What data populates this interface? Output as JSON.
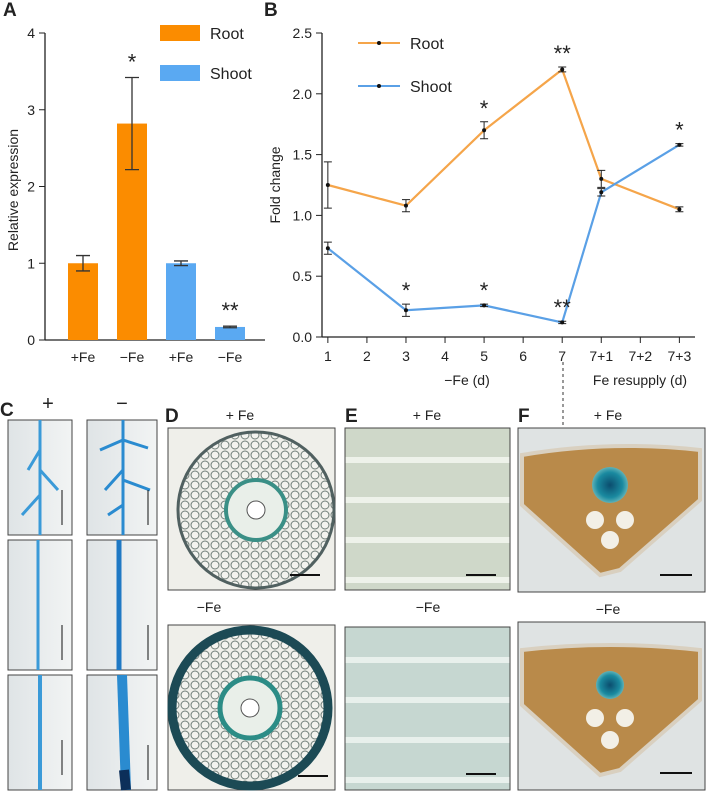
{
  "chart_data": [
    {
      "type": "bar",
      "letter": "A",
      "ylabel": "Relative expression",
      "categories": [
        "+Fe",
        "−Fe",
        "+Fe",
        "−Fe"
      ],
      "series": [
        {
          "name": "Root",
          "color": "#fb8c00",
          "values": [
            1.0,
            2.82,
            null,
            null
          ],
          "errors": [
            0.1,
            0.6,
            null,
            null
          ],
          "significance": [
            null,
            "*",
            null,
            null
          ]
        },
        {
          "name": "Shoot",
          "color": "#5aa9f2",
          "values": [
            null,
            null,
            1.0,
            0.17
          ],
          "errors": [
            null,
            null,
            0.03,
            0.01
          ],
          "significance": [
            null,
            null,
            null,
            "**"
          ]
        }
      ],
      "ylim": [
        0,
        4
      ],
      "yticks": [
        0,
        1,
        2,
        3,
        4
      ]
    },
    {
      "type": "line",
      "letter": "B",
      "ylabel": "Fold change",
      "xlabels": [
        "−Fe (d)",
        "Fe resupply (d)"
      ],
      "x": [
        1,
        3,
        5,
        7,
        8,
        10
      ],
      "xlim": [
        0.85,
        10.4
      ],
      "xticks": [
        1,
        2,
        3,
        4,
        5,
        6,
        7,
        {
          "value": 8,
          "label": "7+1"
        },
        {
          "value": 9,
          "label": "7+2"
        },
        {
          "value": 10,
          "label": "7+3"
        }
      ],
      "ylim": [
        0,
        2.5
      ],
      "yticks": [
        {
          "value": 0,
          "label": "0.0"
        },
        0.5,
        {
          "value": 1,
          "label": "1.0"
        },
        1.5,
        {
          "value": 2,
          "label": "2.0"
        },
        2.5
      ],
      "series": [
        {
          "name": "Root",
          "color": "#f5a54a",
          "values": [
            1.25,
            1.08,
            1.7,
            2.2,
            1.3,
            1.05
          ],
          "errors": [
            0.19,
            0.05,
            0.07,
            0.02,
            0.07,
            0.02
          ],
          "significance": [
            null,
            null,
            "*",
            "**",
            null,
            null
          ]
        },
        {
          "name": "Shoot",
          "color": "#5aa0e6",
          "values": [
            0.73,
            0.22,
            0.26,
            0.12,
            1.19,
            1.58
          ],
          "errors": [
            0.05,
            0.05,
            0.01,
            0.01,
            0.03,
            0.01
          ],
          "significance": [
            null,
            "*",
            "*",
            "**",
            null,
            "*"
          ]
        }
      ]
    }
  ],
  "panels": [
    {
      "letter": "C",
      "labels": [
        "+",
        "−"
      ]
    },
    {
      "letter": "D",
      "labels": [
        "+ Fe",
        "−Fe"
      ]
    },
    {
      "letter": "E",
      "labels": [
        "+ Fe",
        "−Fe"
      ]
    },
    {
      "letter": "F",
      "labels": [
        "+ Fe",
        "−Fe"
      ]
    }
  ]
}
